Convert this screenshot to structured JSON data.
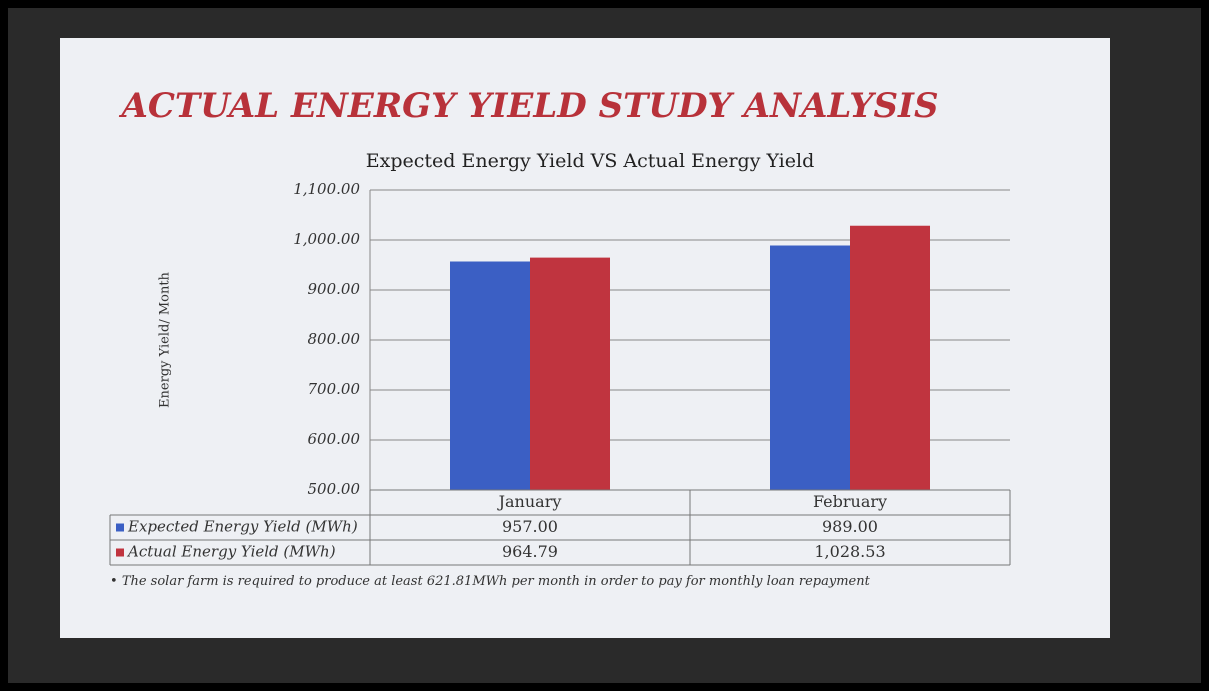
{
  "slide_title": "ACTUAL ENERGY YIELD STUDY ANALYSIS",
  "chart_data": {
    "type": "bar",
    "title": "Expected Energy Yield VS Actual Energy Yield",
    "y_label": "Energy Yield/ Month",
    "categories": [
      "January",
      "February"
    ],
    "series": [
      {
        "name": "Expected Energy Yield (MWh)",
        "color": "#3b5fc4",
        "values": [
          957.0,
          989.0
        ],
        "value_labels": [
          "957.00",
          "989.00"
        ]
      },
      {
        "name": "Actual Energy Yield (MWh)",
        "color": "#c0343f",
        "values": [
          964.79,
          1028.53
        ],
        "value_labels": [
          "964.79",
          "1,028.53"
        ]
      }
    ],
    "ylim": [
      500,
      1100
    ],
    "yticks": [
      {
        "value": 500,
        "label": "500.00"
      },
      {
        "value": 600,
        "label": "600.00"
      },
      {
        "value": 700,
        "label": "700.00"
      },
      {
        "value": 800,
        "label": "800.00"
      },
      {
        "value": 900,
        "label": "900.00"
      },
      {
        "value": 1000,
        "label": "1,000.00"
      },
      {
        "value": 1100,
        "label": "1,100.00"
      }
    ],
    "grid": true,
    "footnote": "The solar farm is required to produce at least 621.81MWh per month in order to pay for monthly loan repayment"
  }
}
